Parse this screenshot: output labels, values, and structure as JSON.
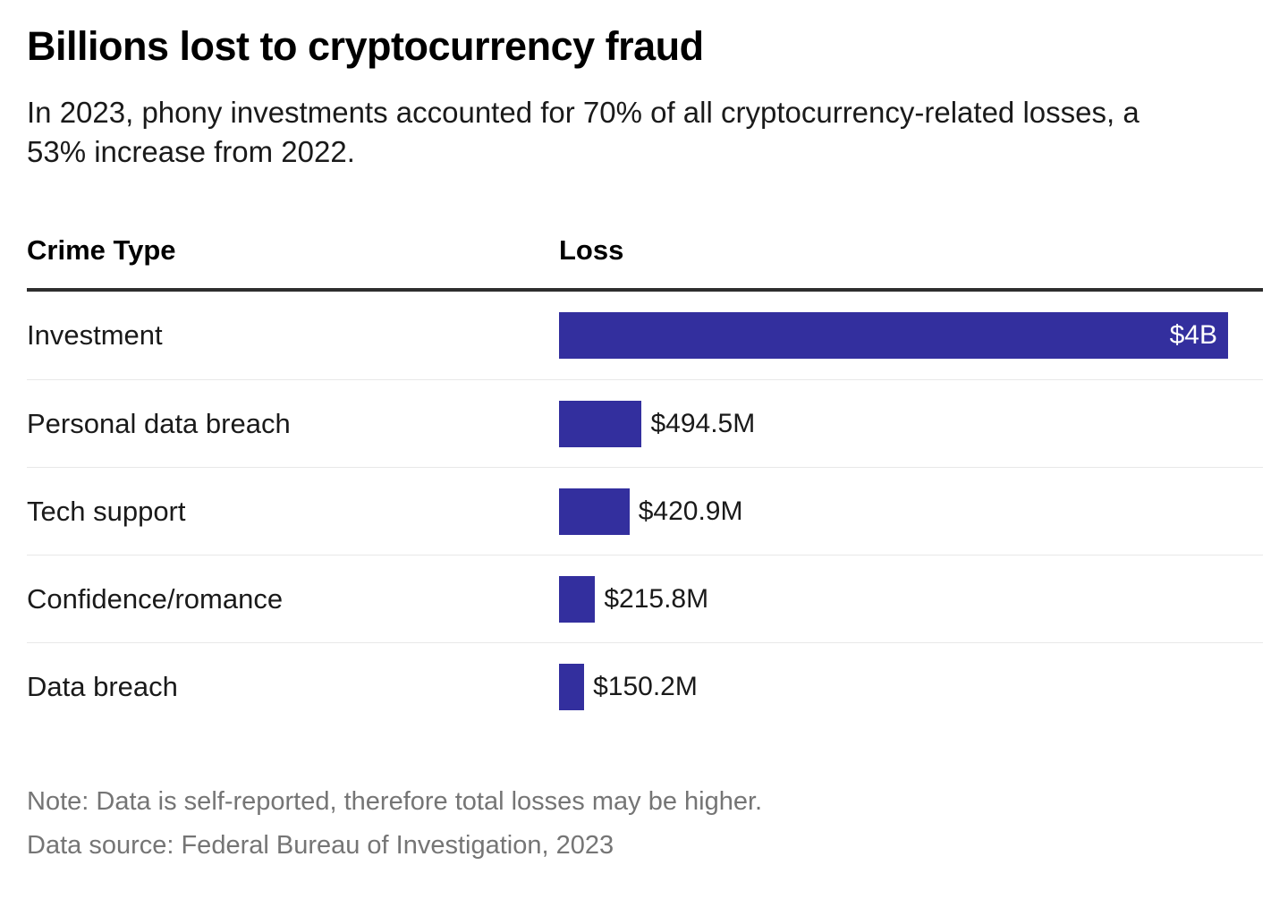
{
  "chart_data": {
    "type": "bar",
    "orientation": "horizontal",
    "title": "Billions lost to cryptocurrency fraud",
    "subtitle": "In 2023, phony investments accounted for 70% of all cryptocurrency-related losses, a 53% increase from 2022.",
    "column_headers": {
      "category": "Crime Type",
      "value": "Loss"
    },
    "categories": [
      "Investment",
      "Personal data breach",
      "Tech support",
      "Confidence/romance",
      "Data breach"
    ],
    "values_millions_usd": [
      4000,
      494.5,
      420.9,
      215.8,
      150.2
    ],
    "value_labels": [
      "$4B",
      "$494.5M",
      "$420.9M",
      "$215.8M",
      "$150.2M"
    ],
    "value_label_positions": [
      "inside",
      "outside",
      "outside",
      "outside",
      "outside"
    ],
    "xlim_millions": [
      0,
      4000
    ],
    "bar_color": "#332f9e",
    "grid": "off",
    "legend": "none",
    "note": "Note: Data is self-reported, therefore total losses may be higher.",
    "source": "Data source: Federal Bureau of Investigation, 2023"
  }
}
